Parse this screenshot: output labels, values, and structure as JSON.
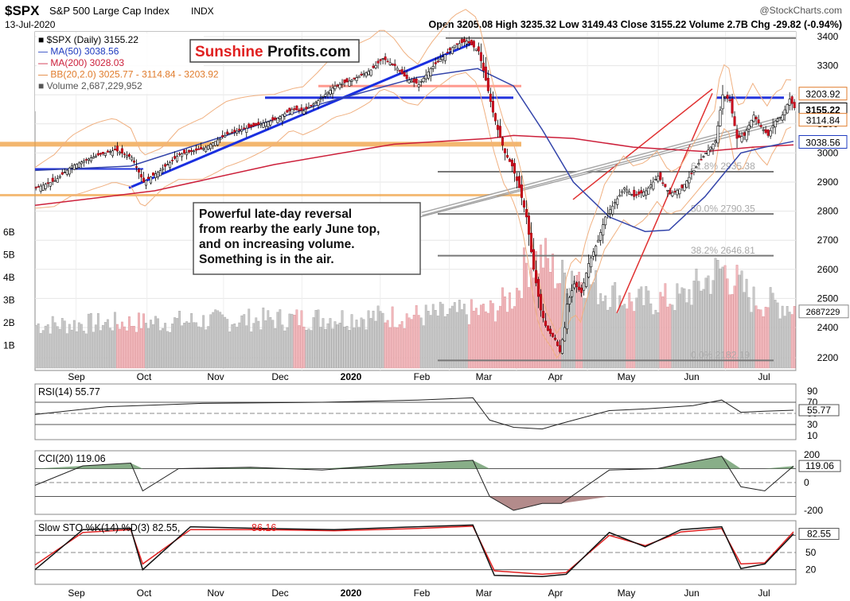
{
  "header": {
    "symbol": "$SPX",
    "name": "S&P 500 Large Cap Index",
    "exchange": "INDX",
    "source": "@StockCharts.com",
    "date": "13-Jul-2020",
    "ohlc_text": "Open 3205.08  High 3235.32  Low 3149.43  Close 3155.22  Volume 2.7B  Chg -29.82 (-0.94%)"
  },
  "legend": [
    {
      "text": "■ $SPX (Daily) 3155.22",
      "color": "#000000"
    },
    {
      "text": "— MA(50) 3038.56",
      "color": "#1f3bbf"
    },
    {
      "text": "— MA(200) 3028.03",
      "color": "#cc1f3a"
    },
    {
      "text": "— BB(20,2.0) 3025.77 - 3114.84 - 3203.92",
      "color": "#e07c2c"
    },
    {
      "text": "■ Volume 2,687,229,952",
      "color": "#555555"
    }
  ],
  "logo": {
    "part1": "Sunshine",
    "part2": "Profits.com"
  },
  "annotation": {
    "lines": [
      "Powerful late-day reversal",
      "from rearby the early June top,",
      "and on increasing volume.",
      "Something is in the air."
    ]
  },
  "fib_labels": [
    {
      "text": "61.8% 2935.38",
      "price": 2935
    },
    {
      "text": "50.0% 2790.35",
      "price": 2790
    },
    {
      "text": "38.2% 2646.81",
      "price": 2646
    },
    {
      "text": "0.0% 2182.19",
      "price": 2182
    }
  ],
  "price_badges": [
    {
      "text": "3203.92",
      "price": 3204,
      "color": "#e07c2c"
    },
    {
      "text": "3155.22",
      "price": 3150,
      "color": "#000000",
      "bold": true
    },
    {
      "text": "3114.84",
      "price": 3114,
      "color": "#e07c2c"
    },
    {
      "text": "3038.56",
      "price": 3038,
      "color": "#1f3bbf"
    }
  ],
  "volume_badge": "2687229",
  "volume_ticks": [
    "6B",
    "5B",
    "4B",
    "3B",
    "2B",
    "1B"
  ],
  "panels": {
    "rsi": {
      "label": "RSI(14) 55.77",
      "badge": "55.77",
      "ticks": [
        "90",
        "70",
        "50",
        "30",
        "10"
      ]
    },
    "cci": {
      "label": "CCI(20) 119.06",
      "badge": "119.06",
      "ticks": [
        "200",
        "0",
        "-200"
      ]
    },
    "sto": {
      "label_a": "Slow STO %K(14) %D(3) 82.55,",
      "label_b": "86.16",
      "badge": "82.55",
      "ticks": [
        "80",
        "50",
        "20"
      ]
    }
  },
  "x_axis_labels": [
    "Sep",
    "Oct",
    "Nov",
    "Dec",
    "2020",
    "Feb",
    "Mar",
    "Apr",
    "May",
    "Jun",
    "Jul"
  ],
  "chart_data": {
    "type": "candlestick",
    "title": "$SPX S&P 500 Large Cap Index INDX",
    "x_labels": [
      "Sep",
      "Oct",
      "Nov",
      "Dec",
      "2020",
      "Feb",
      "Mar",
      "Apr",
      "May",
      "Jun",
      "Jul"
    ],
    "price_axis": {
      "ticks": [
        3400,
        3300,
        3200,
        3100,
        3000,
        2900,
        2800,
        2700,
        2600,
        2500,
        2400,
        2200
      ]
    },
    "price_path": [
      [
        0,
        2880
      ],
      [
        8,
        2905
      ],
      [
        15,
        2955
      ],
      [
        25,
        2990
      ],
      [
        33,
        3010
      ],
      [
        40,
        2985
      ],
      [
        45,
        2900
      ],
      [
        52,
        2940
      ],
      [
        60,
        2995
      ],
      [
        70,
        3015
      ],
      [
        80,
        3065
      ],
      [
        90,
        3090
      ],
      [
        100,
        3115
      ],
      [
        107,
        3150
      ],
      [
        112,
        3145
      ],
      [
        118,
        3180
      ],
      [
        125,
        3230
      ],
      [
        132,
        3250
      ],
      [
        140,
        3285
      ],
      [
        145,
        3325
      ],
      [
        150,
        3300
      ],
      [
        155,
        3255
      ],
      [
        160,
        3235
      ],
      [
        165,
        3290
      ],
      [
        170,
        3330
      ],
      [
        175,
        3370
      ],
      [
        180,
        3385
      ],
      [
        185,
        3350
      ],
      [
        188,
        3250
      ],
      [
        191,
        3140
      ],
      [
        193,
        3080
      ],
      [
        196,
        3000
      ],
      [
        199,
        2955
      ],
      [
        202,
        2880
      ],
      [
        205,
        2780
      ],
      [
        208,
        2600
      ],
      [
        211,
        2460
      ],
      [
        214,
        2380
      ],
      [
        217,
        2320
      ],
      [
        219,
        2240
      ],
      [
        222,
        2480
      ],
      [
        225,
        2550
      ],
      [
        228,
        2520
      ],
      [
        231,
        2620
      ],
      [
        235,
        2700
      ],
      [
        238,
        2780
      ],
      [
        242,
        2830
      ],
      [
        246,
        2880
      ],
      [
        250,
        2850
      ],
      [
        255,
        2870
      ],
      [
        260,
        2920
      ],
      [
        265,
        2860
      ],
      [
        270,
        2880
      ],
      [
        275,
        2940
      ],
      [
        280,
        3000
      ],
      [
        284,
        3040
      ],
      [
        287,
        3200
      ],
      [
        290,
        3180
      ],
      [
        293,
        3050
      ],
      [
        296,
        3060
      ],
      [
        300,
        3130
      ],
      [
        303,
        3090
      ],
      [
        306,
        3060
      ],
      [
        309,
        3110
      ],
      [
        312,
        3130
      ],
      [
        315,
        3185
      ],
      [
        317,
        3155
      ]
    ],
    "ma50_path": [
      [
        0,
        2940
      ],
      [
        40,
        2955
      ],
      [
        80,
        3060
      ],
      [
        120,
        3170
      ],
      [
        160,
        3260
      ],
      [
        185,
        3290
      ],
      [
        200,
        3230
      ],
      [
        212,
        3080
      ],
      [
        225,
        2900
      ],
      [
        240,
        2780
      ],
      [
        255,
        2730
      ],
      [
        265,
        2735
      ],
      [
        280,
        2850
      ],
      [
        295,
        3000
      ],
      [
        305,
        3020
      ],
      [
        317,
        3040
      ]
    ],
    "ma200_path": [
      [
        0,
        2820
      ],
      [
        50,
        2870
      ],
      [
        100,
        2960
      ],
      [
        150,
        3030
      ],
      [
        190,
        3050
      ],
      [
        200,
        3060
      ],
      [
        225,
        3050
      ],
      [
        250,
        3020
      ],
      [
        280,
        3005
      ],
      [
        300,
        3020
      ],
      [
        317,
        3028
      ]
    ],
    "volume_path": [
      [
        0,
        1.9
      ],
      [
        40,
        2.0
      ],
      [
        80,
        2.1
      ],
      [
        120,
        2.2
      ],
      [
        160,
        2.3
      ],
      [
        190,
        2.5
      ],
      [
        200,
        3.2
      ],
      [
        205,
        4.6
      ],
      [
        212,
        4.9
      ],
      [
        219,
        3.9
      ],
      [
        225,
        4.4
      ],
      [
        235,
        3.5
      ],
      [
        250,
        2.9
      ],
      [
        270,
        3.1
      ],
      [
        287,
        4.4
      ],
      [
        300,
        3.0
      ],
      [
        317,
        2.7
      ]
    ],
    "rsi_path": [
      [
        0,
        48
      ],
      [
        30,
        62
      ],
      [
        70,
        68
      ],
      [
        120,
        70
      ],
      [
        160,
        74
      ],
      [
        183,
        78
      ],
      [
        190,
        38
      ],
      [
        200,
        25
      ],
      [
        212,
        22
      ],
      [
        220,
        32
      ],
      [
        240,
        55
      ],
      [
        255,
        58
      ],
      [
        275,
        64
      ],
      [
        287,
        74
      ],
      [
        295,
        52
      ],
      [
        305,
        54
      ],
      [
        317,
        55.77
      ]
    ],
    "cci_path": [
      [
        0,
        -20
      ],
      [
        20,
        120
      ],
      [
        40,
        140
      ],
      [
        45,
        -60
      ],
      [
        60,
        100
      ],
      [
        90,
        110
      ],
      [
        120,
        90
      ],
      [
        150,
        130
      ],
      [
        183,
        160
      ],
      [
        190,
        -100
      ],
      [
        200,
        -200
      ],
      [
        212,
        -150
      ],
      [
        220,
        -150
      ],
      [
        240,
        90
      ],
      [
        260,
        100
      ],
      [
        287,
        190
      ],
      [
        295,
        -30
      ],
      [
        305,
        -60
      ],
      [
        317,
        119.06
      ]
    ],
    "sto_k_path": [
      [
        0,
        20
      ],
      [
        20,
        90
      ],
      [
        40,
        92
      ],
      [
        45,
        20
      ],
      [
        65,
        95
      ],
      [
        95,
        92
      ],
      [
        125,
        90
      ],
      [
        160,
        95
      ],
      [
        183,
        98
      ],
      [
        192,
        10
      ],
      [
        212,
        8
      ],
      [
        222,
        12
      ],
      [
        240,
        85
      ],
      [
        255,
        60
      ],
      [
        270,
        90
      ],
      [
        287,
        95
      ],
      [
        295,
        22
      ],
      [
        305,
        30
      ],
      [
        317,
        82.55
      ]
    ],
    "sto_d_path": [
      [
        0,
        28
      ],
      [
        20,
        85
      ],
      [
        40,
        90
      ],
      [
        45,
        30
      ],
      [
        65,
        90
      ],
      [
        95,
        90
      ],
      [
        125,
        88
      ],
      [
        160,
        92
      ],
      [
        183,
        96
      ],
      [
        192,
        18
      ],
      [
        212,
        12
      ],
      [
        222,
        15
      ],
      [
        240,
        80
      ],
      [
        255,
        62
      ],
      [
        270,
        86
      ],
      [
        287,
        92
      ],
      [
        295,
        30
      ],
      [
        305,
        32
      ],
      [
        317,
        86.16
      ]
    ],
    "fib_levels": [
      2935.38,
      2790.35,
      2646.81,
      2182.19
    ]
  }
}
